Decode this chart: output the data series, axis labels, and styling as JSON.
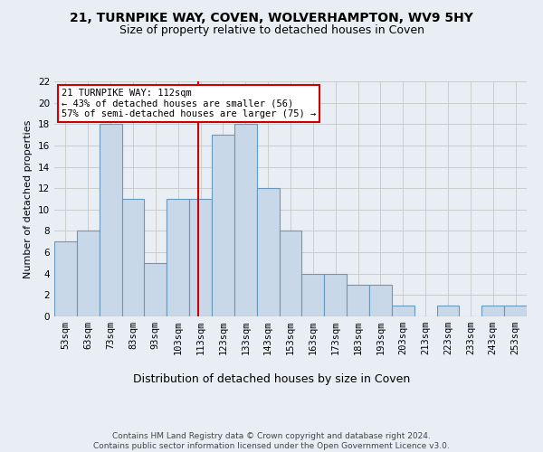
{
  "title": "21, TURNPIKE WAY, COVEN, WOLVERHAMPTON, WV9 5HY",
  "subtitle": "Size of property relative to detached houses in Coven",
  "xlabel": "Distribution of detached houses by size in Coven",
  "ylabel": "Number of detached properties",
  "bins": [
    53,
    63,
    73,
    83,
    93,
    103,
    113,
    123,
    133,
    143,
    153,
    163,
    173,
    183,
    193,
    203,
    213,
    223,
    233,
    243,
    253
  ],
  "values": [
    7,
    8,
    18,
    11,
    5,
    11,
    11,
    17,
    18,
    12,
    8,
    4,
    4,
    3,
    3,
    1,
    0,
    1,
    0,
    1,
    1
  ],
  "bar_color": "#c8d8e8",
  "bar_edge_color": "#6699bb",
  "marker_value": 112,
  "marker_color": "#cc0000",
  "annotation_line1": "21 TURNPIKE WAY: 112sqm",
  "annotation_line2": "← 43% of detached houses are smaller (56)",
  "annotation_line3": "57% of semi-detached houses are larger (75) →",
  "annotation_box_color": "#ffffff",
  "annotation_box_edge": "#cc0000",
  "ylim": [
    0,
    22
  ],
  "yticks": [
    0,
    2,
    4,
    6,
    8,
    10,
    12,
    14,
    16,
    18,
    20,
    22
  ],
  "grid_color": "#cccccc",
  "bg_color": "#e8eef4",
  "footer": "Contains HM Land Registry data © Crown copyright and database right 2024.\nContains public sector information licensed under the Open Government Licence v3.0.",
  "title_fontsize": 10,
  "subtitle_fontsize": 9,
  "xlabel_fontsize": 9,
  "ylabel_fontsize": 8,
  "tick_fontsize": 7.5,
  "annotation_fontsize": 7.5,
  "footer_fontsize": 6.5
}
